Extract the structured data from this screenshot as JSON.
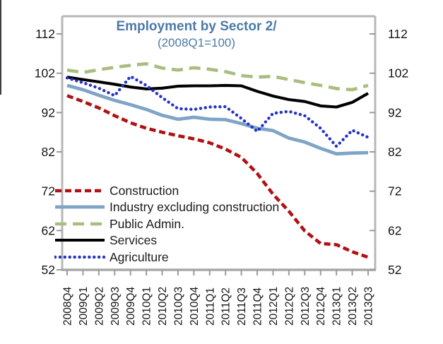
{
  "chart_data": {
    "type": "line",
    "title": "Employment by Sector 2/",
    "subtitle": "(2008Q1=100)",
    "x_categories": [
      "2008Q4",
      "2009Q1",
      "2009Q2",
      "2009Q3",
      "2009Q4",
      "2010Q1",
      "2010Q2",
      "2010Q3",
      "2010Q4",
      "2011Q1",
      "2011Q2",
      "2011Q3",
      "2011Q4",
      "2012Q1",
      "2012Q2",
      "2012Q3",
      "2012Q4",
      "2013Q1",
      "2013Q2",
      "2013Q3"
    ],
    "ylim": [
      52,
      112
    ],
    "yticks": [
      52,
      62,
      72,
      82,
      92,
      102,
      112
    ],
    "y_axis_sides": "both",
    "grid": false,
    "legend_position": "inside-lower-left",
    "series": [
      {
        "name": "Construction",
        "style": "dashed",
        "color": "#b01114",
        "values": [
          96.3,
          94.8,
          93.2,
          91.2,
          89.4,
          88.0,
          87.0,
          86.1,
          85.3,
          84.3,
          82.7,
          80.6,
          76.5,
          71.2,
          66.9,
          61.9,
          58.7,
          58.4,
          56.6,
          55.2
        ]
      },
      {
        "name": "Industry excluding construction",
        "style": "solid",
        "color": "#7fa4c6",
        "values": [
          98.9,
          97.8,
          96.4,
          95.1,
          94.0,
          92.8,
          91.3,
          90.3,
          90.8,
          90.3,
          90.2,
          89.2,
          88.0,
          87.4,
          85.5,
          84.5,
          82.9,
          81.5,
          81.7,
          81.8
        ]
      },
      {
        "name": "Public Admin.",
        "style": "long-dashed",
        "color": "#a9bd7d",
        "values": [
          102.8,
          102.2,
          102.9,
          103.5,
          104.0,
          104.4,
          103.3,
          102.8,
          103.4,
          103.0,
          102.4,
          101.4,
          101.0,
          101.2,
          100.4,
          99.6,
          98.9,
          98.1,
          97.8,
          98.9
        ]
      },
      {
        "name": "Services",
        "style": "solid",
        "color": "#000000",
        "values": [
          101.0,
          100.4,
          99.8,
          99.2,
          98.5,
          98.0,
          98.2,
          98.7,
          98.8,
          98.8,
          98.9,
          98.8,
          97.4,
          96.2,
          95.3,
          94.8,
          93.7,
          93.4,
          94.6,
          96.9
        ]
      },
      {
        "name": "Agriculture",
        "style": "dotted",
        "color": "#2433c4",
        "values": [
          100.8,
          99.6,
          98.2,
          96.3,
          101.2,
          98.9,
          95.8,
          93.0,
          92.8,
          93.4,
          93.5,
          90.5,
          87.2,
          91.8,
          92.3,
          91.2,
          88.0,
          83.4,
          87.5,
          85.7
        ]
      }
    ]
  },
  "colors": {
    "title_text": "#4b7aa8",
    "axis_frame": "#b7b7b7",
    "tick_mark": "#9c9c9c",
    "axis_label_text": "#141414"
  }
}
